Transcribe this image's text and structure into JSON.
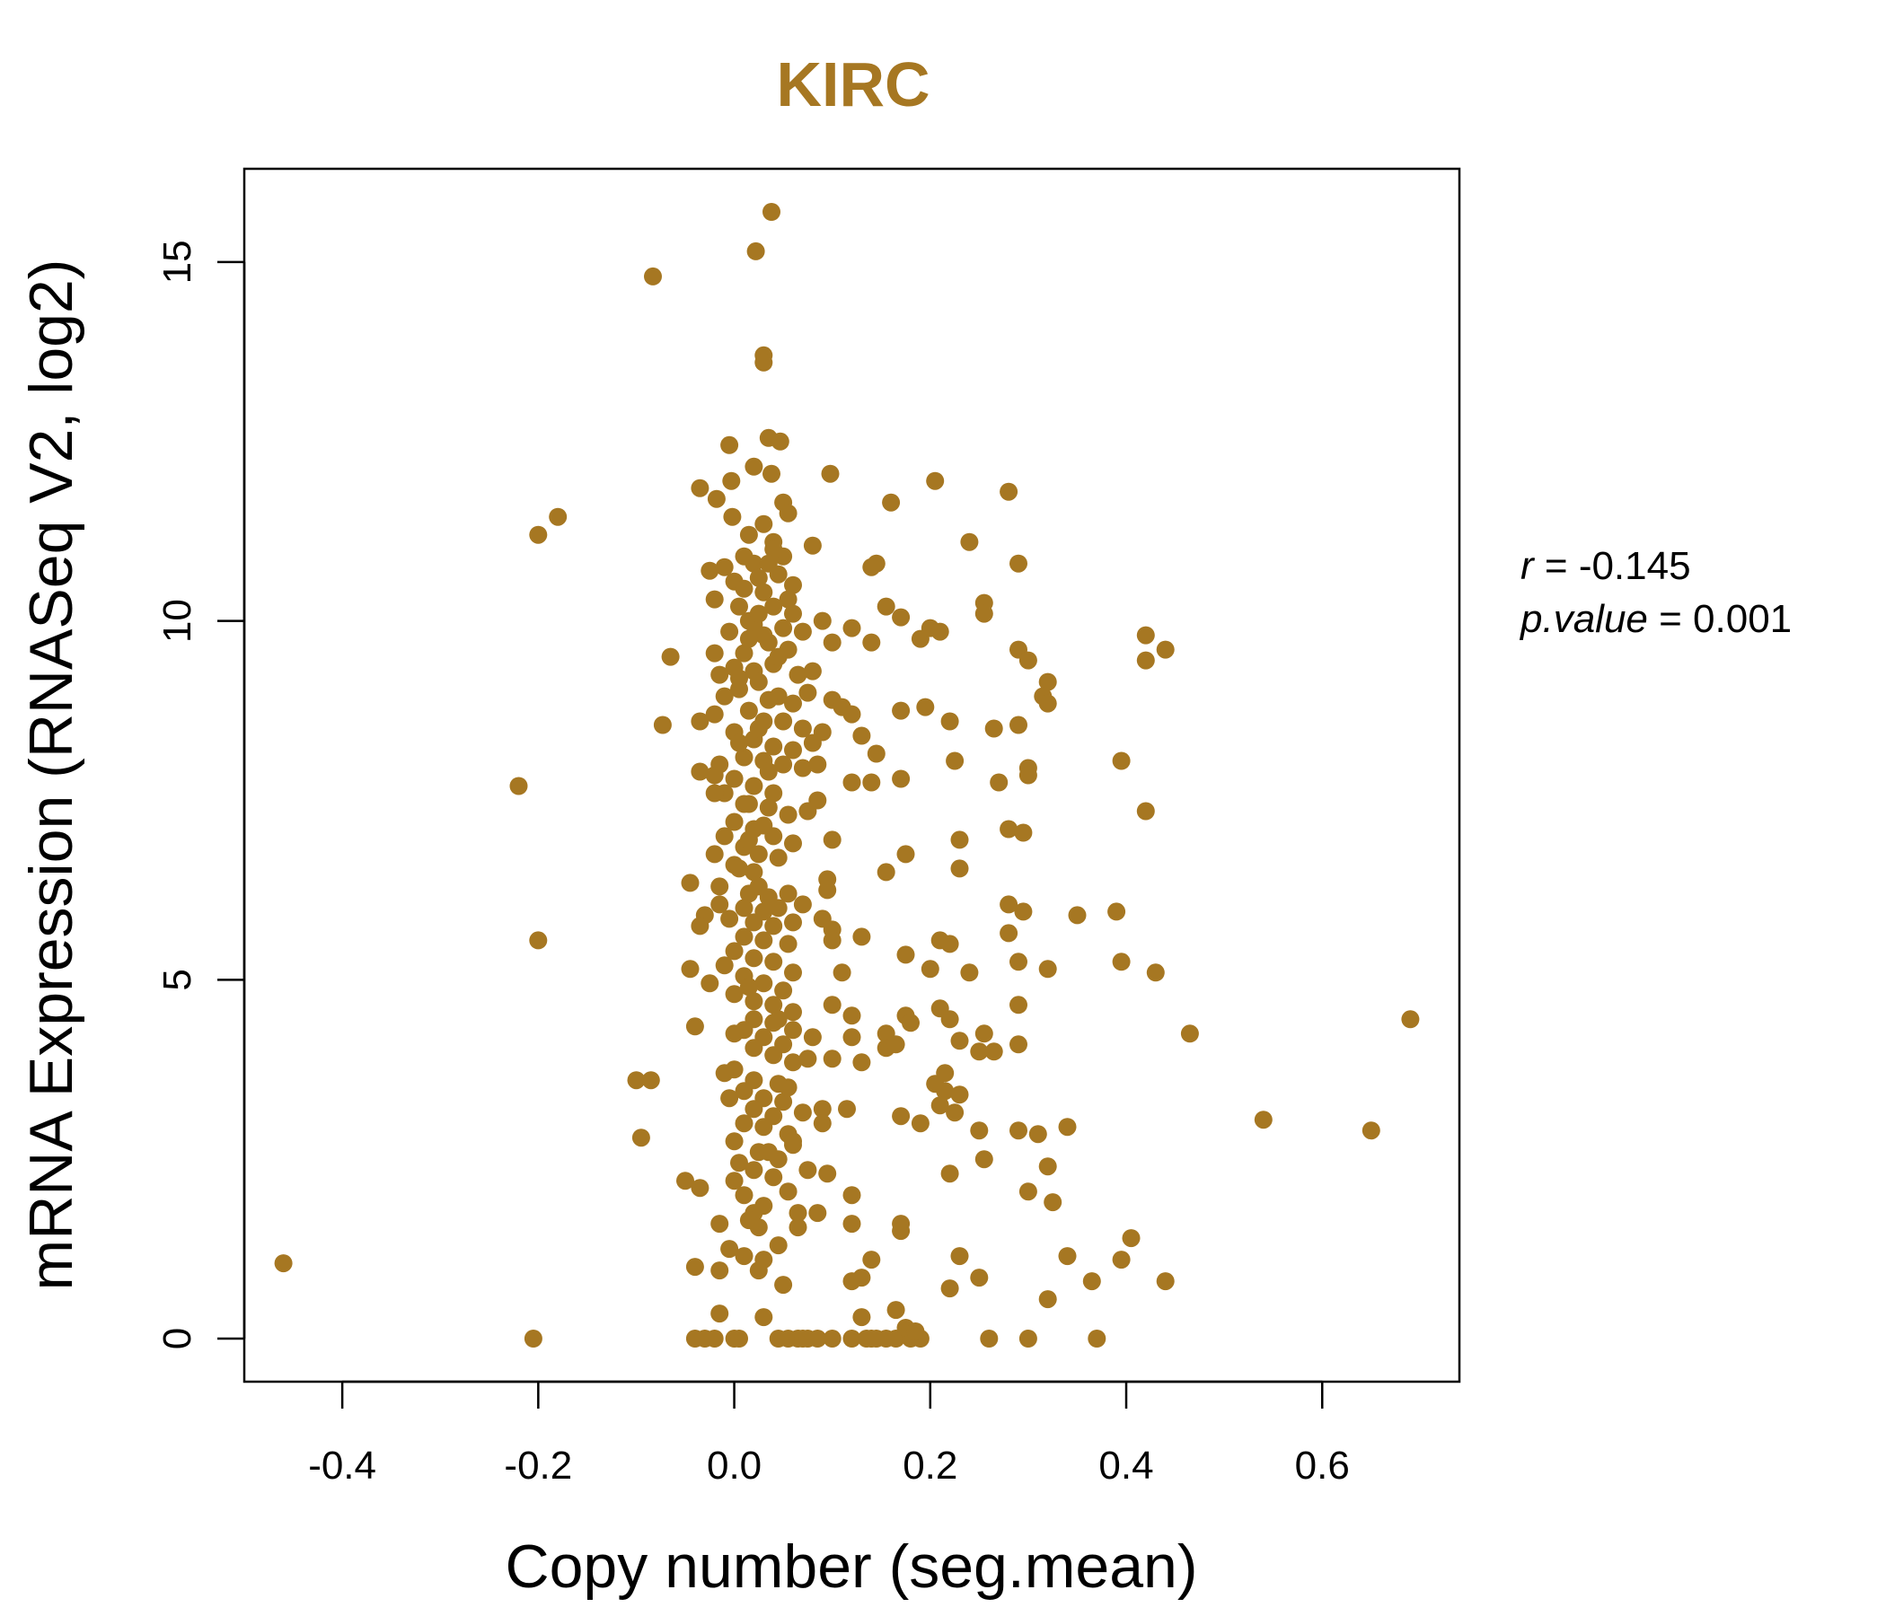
{
  "chart_data": {
    "type": "scatter",
    "title": "KIRC",
    "xlabel": "Copy number (seg.mean)",
    "ylabel": "mRNA Expression (RNASeq V2, log2)",
    "xlim": [
      -0.5,
      0.74
    ],
    "ylim": [
      -0.6,
      16.3
    ],
    "xticks": [
      -0.4,
      -0.2,
      0.0,
      0.2,
      0.4,
      0.6
    ],
    "xtick_labels": [
      "-0.4",
      "-0.2",
      "0.0",
      "0.2",
      "0.4",
      "0.6"
    ],
    "yticks": [
      0,
      5,
      10,
      15
    ],
    "ytick_labels": [
      "0",
      "5",
      "10",
      "15"
    ],
    "grid": false,
    "point_color": "#A67722",
    "title_color": "#A67722",
    "annotation": {
      "r_label": "r",
      "r_value": "-0.145",
      "p_label": "p.value",
      "p_value": "0.001"
    },
    "points": [
      [
        -0.46,
        1.05
      ],
      [
        -0.205,
        0.0
      ],
      [
        -0.2,
        5.55
      ],
      [
        -0.2,
        11.2
      ],
      [
        -0.18,
        11.45
      ],
      [
        -0.22,
        7.7
      ],
      [
        -0.1,
        3.6
      ],
      [
        -0.085,
        3.6
      ],
      [
        -0.095,
        2.8
      ],
      [
        -0.083,
        14.8
      ],
      [
        -0.073,
        8.55
      ],
      [
        -0.065,
        9.5
      ],
      [
        0.038,
        15.7
      ],
      [
        0.022,
        15.15
      ],
      [
        0.03,
        13.7
      ],
      [
        0.03,
        13.6
      ],
      [
        0.035,
        12.55
      ],
      [
        0.047,
        12.5
      ],
      [
        -0.005,
        12.45
      ],
      [
        0.02,
        12.15
      ],
      [
        0.038,
        12.05
      ],
      [
        -0.035,
        11.85
      ],
      [
        -0.018,
        11.7
      ],
      [
        -0.003,
        11.95
      ],
      [
        0.05,
        11.65
      ],
      [
        0.055,
        11.5
      ],
      [
        -0.002,
        11.45
      ],
      [
        0.015,
        11.2
      ],
      [
        0.03,
        11.35
      ],
      [
        0.04,
        11.1
      ],
      [
        0.01,
        10.9
      ],
      [
        0.02,
        10.8
      ],
      [
        0.05,
        10.9
      ],
      [
        0.06,
        10.5
      ],
      [
        0.055,
        10.3
      ],
      [
        -0.025,
        10.7
      ],
      [
        -0.01,
        10.75
      ],
      [
        0.0,
        10.55
      ],
      [
        0.025,
        10.6
      ],
      [
        0.03,
        10.4
      ],
      [
        0.005,
        10.2
      ],
      [
        -0.02,
        10.3
      ],
      [
        0.04,
        10.2
      ],
      [
        0.06,
        10.1
      ],
      [
        0.015,
        10.0
      ],
      [
        0.02,
        9.95
      ],
      [
        -0.005,
        9.85
      ],
      [
        0.03,
        9.8
      ],
      [
        0.05,
        9.9
      ],
      [
        0.07,
        9.85
      ],
      [
        0.055,
        9.6
      ],
      [
        0.01,
        9.55
      ],
      [
        0.035,
        9.7
      ],
      [
        -0.02,
        9.55
      ],
      [
        0.0,
        9.35
      ],
      [
        0.02,
        9.3
      ],
      [
        0.04,
        9.4
      ],
      [
        0.065,
        9.25
      ],
      [
        0.08,
        9.3
      ],
      [
        0.075,
        9.0
      ],
      [
        -0.015,
        9.25
      ],
      [
        0.005,
        9.05
      ],
      [
        0.025,
        9.15
      ],
      [
        0.045,
        8.95
      ],
      [
        0.06,
        8.85
      ],
      [
        -0.01,
        8.95
      ],
      [
        0.015,
        8.75
      ],
      [
        0.03,
        8.6
      ],
      [
        -0.02,
        8.7
      ],
      [
        0.05,
        8.6
      ],
      [
        0.07,
        8.5
      ],
      [
        -0.035,
        8.6
      ],
      [
        0.0,
        8.45
      ],
      [
        0.02,
        8.35
      ],
      [
        0.04,
        8.25
      ],
      [
        0.06,
        8.2
      ],
      [
        0.08,
        8.3
      ],
      [
        0.09,
        8.45
      ],
      [
        0.01,
        8.1
      ],
      [
        0.03,
        8.05
      ],
      [
        -0.015,
        8.0
      ],
      [
        0.05,
        8.0
      ],
      [
        0.07,
        7.95
      ],
      [
        0.085,
        8.0
      ],
      [
        -0.035,
        7.9
      ],
      [
        -0.02,
        7.85
      ],
      [
        0.0,
        7.8
      ],
      [
        0.02,
        7.7
      ],
      [
        0.04,
        7.6
      ],
      [
        -0.01,
        7.6
      ],
      [
        0.015,
        7.45
      ],
      [
        0.035,
        7.4
      ],
      [
        0.055,
        7.3
      ],
      [
        0.075,
        7.35
      ],
      [
        0.085,
        7.5
      ],
      [
        -0.02,
        7.6
      ],
      [
        0.0,
        7.2
      ],
      [
        0.02,
        7.1
      ],
      [
        0.04,
        7.0
      ],
      [
        0.06,
        6.9
      ],
      [
        0.01,
        6.85
      ],
      [
        -0.01,
        7.0
      ],
      [
        0.025,
        6.75
      ],
      [
        0.045,
        6.7
      ],
      [
        -0.02,
        6.75
      ],
      [
        0.0,
        6.6
      ],
      [
        0.02,
        6.5
      ],
      [
        -0.045,
        6.35
      ],
      [
        -0.015,
        6.3
      ],
      [
        0.015,
        6.2
      ],
      [
        0.035,
        6.15
      ],
      [
        0.055,
        6.2
      ],
      [
        0.07,
        6.05
      ],
      [
        0.01,
        6.0
      ],
      [
        0.03,
        5.95
      ],
      [
        -0.03,
        5.9
      ],
      [
        -0.005,
        5.85
      ],
      [
        0.02,
        5.8
      ],
      [
        0.04,
        5.75
      ],
      [
        0.06,
        5.8
      ],
      [
        0.09,
        5.85
      ],
      [
        0.1,
        5.7
      ],
      [
        -0.035,
        5.75
      ],
      [
        0.0,
        5.4
      ],
      [
        0.02,
        5.3
      ],
      [
        0.04,
        5.25
      ],
      [
        0.06,
        5.1
      ],
      [
        -0.045,
        5.15
      ],
      [
        -0.01,
        5.2
      ],
      [
        0.01,
        5.05
      ],
      [
        0.03,
        4.95
      ],
      [
        0.05,
        4.85
      ],
      [
        -0.025,
        4.95
      ],
      [
        0.0,
        4.8
      ],
      [
        0.02,
        4.7
      ],
      [
        0.04,
        4.65
      ],
      [
        0.06,
        4.55
      ],
      [
        0.02,
        4.45
      ],
      [
        0.04,
        4.4
      ],
      [
        0.01,
        4.3
      ],
      [
        0.03,
        4.2
      ],
      [
        0.05,
        4.1
      ],
      [
        -0.04,
        4.35
      ],
      [
        0.0,
        4.25
      ],
      [
        0.02,
        4.05
      ],
      [
        0.04,
        3.95
      ],
      [
        0.06,
        3.85
      ],
      [
        0.0,
        3.75
      ],
      [
        -0.01,
        3.7
      ],
      [
        0.02,
        3.6
      ],
      [
        0.045,
        3.55
      ],
      [
        0.01,
        3.45
      ],
      [
        0.03,
        3.35
      ],
      [
        0.05,
        3.3
      ],
      [
        -0.005,
        3.35
      ],
      [
        0.02,
        3.2
      ],
      [
        0.04,
        3.1
      ],
      [
        0.01,
        3.0
      ],
      [
        0.03,
        2.95
      ],
      [
        0.055,
        2.85
      ],
      [
        0.06,
        2.7
      ],
      [
        0.0,
        2.75
      ],
      [
        0.025,
        2.6
      ],
      [
        0.045,
        2.5
      ],
      [
        0.005,
        2.45
      ],
      [
        0.02,
        2.35
      ],
      [
        0.0,
        2.2
      ],
      [
        0.04,
        2.25
      ],
      [
        -0.05,
        2.2
      ],
      [
        -0.035,
        2.1
      ],
      [
        0.01,
        2.0
      ],
      [
        0.03,
        1.85
      ],
      [
        0.02,
        1.75
      ],
      [
        -0.015,
        1.6
      ],
      [
        0.015,
        1.65
      ],
      [
        0.025,
        1.55
      ],
      [
        0.045,
        1.3
      ],
      [
        -0.005,
        1.25
      ],
      [
        0.01,
        1.15
      ],
      [
        0.03,
        1.1
      ],
      [
        0.025,
        0.95
      ],
      [
        -0.04,
        1.0
      ],
      [
        -0.015,
        0.95
      ],
      [
        0.05,
        0.75
      ],
      [
        -0.015,
        0.35
      ],
      [
        0.03,
        0.3
      ],
      [
        -0.04,
        0.0
      ],
      [
        -0.03,
        0.0
      ],
      [
        -0.02,
        0.0
      ],
      [
        0.0,
        0.0
      ],
      [
        0.005,
        0.0
      ],
      [
        0.045,
        0.0
      ],
      [
        0.055,
        0.0
      ],
      [
        0.065,
        0.0
      ],
      [
        0.07,
        0.0
      ],
      [
        0.075,
        0.0
      ],
      [
        0.085,
        0.0
      ],
      [
        0.1,
        0.0
      ],
      [
        0.12,
        0.0
      ],
      [
        0.14,
        0.0
      ],
      [
        0.155,
        0.0
      ],
      [
        0.165,
        0.0
      ],
      [
        0.18,
        0.0
      ],
      [
        0.19,
        0.0
      ],
      [
        0.135,
        0.0
      ],
      [
        0.145,
        0.0
      ],
      [
        0.26,
        0.0
      ],
      [
        0.3,
        0.0
      ],
      [
        0.37,
        0.0
      ],
      [
        0.098,
        12.05
      ],
      [
        0.08,
        11.05
      ],
      [
        0.16,
        11.65
      ],
      [
        0.205,
        11.95
      ],
      [
        0.28,
        11.8
      ],
      [
        0.24,
        11.1
      ],
      [
        0.145,
        10.8
      ],
      [
        0.14,
        10.75
      ],
      [
        0.29,
        10.8
      ],
      [
        0.255,
        10.25
      ],
      [
        0.255,
        10.1
      ],
      [
        0.155,
        10.2
      ],
      [
        0.17,
        10.05
      ],
      [
        0.09,
        10.0
      ],
      [
        0.12,
        9.9
      ],
      [
        0.1,
        9.7
      ],
      [
        0.14,
        9.7
      ],
      [
        0.19,
        9.75
      ],
      [
        0.2,
        9.9
      ],
      [
        0.21,
        9.85
      ],
      [
        0.29,
        9.6
      ],
      [
        0.3,
        9.45
      ],
      [
        0.32,
        9.15
      ],
      [
        0.315,
        8.95
      ],
      [
        0.32,
        8.85
      ],
      [
        0.42,
        9.8
      ],
      [
        0.44,
        9.6
      ],
      [
        0.42,
        9.45
      ],
      [
        0.1,
        8.9
      ],
      [
        0.11,
        8.8
      ],
      [
        0.12,
        8.7
      ],
      [
        0.17,
        8.75
      ],
      [
        0.195,
        8.8
      ],
      [
        0.22,
        8.6
      ],
      [
        0.265,
        8.5
      ],
      [
        0.29,
        8.55
      ],
      [
        0.13,
        8.4
      ],
      [
        0.145,
        8.15
      ],
      [
        0.225,
        8.05
      ],
      [
        0.3,
        7.95
      ],
      [
        0.3,
        7.85
      ],
      [
        0.395,
        8.05
      ],
      [
        0.12,
        7.75
      ],
      [
        0.14,
        7.75
      ],
      [
        0.17,
        7.8
      ],
      [
        0.27,
        7.75
      ],
      [
        0.28,
        7.1
      ],
      [
        0.295,
        7.05
      ],
      [
        0.42,
        7.35
      ],
      [
        0.1,
        6.95
      ],
      [
        0.175,
        6.75
      ],
      [
        0.23,
        6.95
      ],
      [
        0.23,
        6.55
      ],
      [
        0.155,
        6.5
      ],
      [
        0.095,
        6.4
      ],
      [
        0.095,
        6.25
      ],
      [
        0.28,
        6.05
      ],
      [
        0.295,
        5.95
      ],
      [
        0.35,
        5.9
      ],
      [
        0.39,
        5.95
      ],
      [
        0.1,
        5.55
      ],
      [
        0.13,
        5.6
      ],
      [
        0.21,
        5.55
      ],
      [
        0.22,
        5.5
      ],
      [
        0.28,
        5.65
      ],
      [
        0.175,
        5.35
      ],
      [
        0.11,
        5.1
      ],
      [
        0.2,
        5.15
      ],
      [
        0.24,
        5.1
      ],
      [
        0.29,
        5.25
      ],
      [
        0.32,
        5.15
      ],
      [
        0.395,
        5.25
      ],
      [
        0.43,
        5.1
      ],
      [
        0.1,
        4.65
      ],
      [
        0.12,
        4.5
      ],
      [
        0.175,
        4.5
      ],
      [
        0.21,
        4.6
      ],
      [
        0.22,
        4.45
      ],
      [
        0.29,
        4.65
      ],
      [
        0.08,
        4.2
      ],
      [
        0.12,
        4.2
      ],
      [
        0.155,
        4.25
      ],
      [
        0.155,
        4.05
      ],
      [
        0.165,
        4.1
      ],
      [
        0.18,
        4.4
      ],
      [
        0.23,
        4.15
      ],
      [
        0.25,
        4.0
      ],
      [
        0.255,
        4.25
      ],
      [
        0.265,
        4.0
      ],
      [
        0.29,
        4.1
      ],
      [
        0.465,
        4.25
      ],
      [
        0.69,
        4.45
      ],
      [
        0.1,
        3.9
      ],
      [
        0.13,
        3.85
      ],
      [
        0.215,
        3.7
      ],
      [
        0.205,
        3.55
      ],
      [
        0.215,
        3.45
      ],
      [
        0.23,
        3.4
      ],
      [
        0.09,
        3.2
      ],
      [
        0.115,
        3.2
      ],
      [
        0.17,
        3.1
      ],
      [
        0.21,
        3.25
      ],
      [
        0.225,
        3.15
      ],
      [
        0.09,
        3.0
      ],
      [
        0.19,
        3.0
      ],
      [
        0.25,
        2.9
      ],
      [
        0.29,
        2.9
      ],
      [
        0.31,
        2.85
      ],
      [
        0.34,
        2.95
      ],
      [
        0.54,
        3.05
      ],
      [
        0.65,
        2.9
      ],
      [
        0.075,
        2.35
      ],
      [
        0.095,
        2.3
      ],
      [
        0.22,
        2.3
      ],
      [
        0.255,
        2.5
      ],
      [
        0.32,
        2.4
      ],
      [
        0.3,
        2.05
      ],
      [
        0.12,
        2.0
      ],
      [
        0.325,
        1.9
      ],
      [
        0.085,
        1.75
      ],
      [
        0.12,
        1.6
      ],
      [
        0.17,
        1.6
      ],
      [
        0.17,
        1.5
      ],
      [
        0.065,
        1.55
      ],
      [
        0.23,
        1.15
      ],
      [
        0.34,
        1.15
      ],
      [
        0.395,
        1.1
      ],
      [
        0.405,
        1.4
      ],
      [
        0.14,
        1.1
      ],
      [
        0.13,
        0.85
      ],
      [
        0.12,
        0.8
      ],
      [
        0.25,
        0.85
      ],
      [
        0.365,
        0.8
      ],
      [
        0.44,
        0.8
      ],
      [
        0.22,
        0.7
      ],
      [
        0.32,
        0.55
      ],
      [
        0.13,
        0.3
      ],
      [
        0.165,
        0.4
      ],
      [
        0.175,
        0.15
      ],
      [
        0.185,
        0.1
      ],
      [
        0.04,
        11.0
      ],
      [
        0.035,
        10.8
      ],
      [
        0.045,
        10.65
      ],
      [
        0.01,
        10.45
      ],
      [
        0.025,
        10.1
      ],
      [
        0.015,
        9.75
      ],
      [
        0.045,
        9.5
      ],
      [
        0.005,
        9.2
      ],
      [
        0.035,
        8.9
      ],
      [
        0.025,
        8.5
      ],
      [
        0.005,
        8.3
      ],
      [
        0.035,
        7.9
      ],
      [
        0.01,
        7.45
      ],
      [
        0.03,
        7.15
      ],
      [
        0.015,
        6.95
      ],
      [
        0.005,
        6.55
      ],
      [
        0.025,
        6.3
      ],
      [
        -0.015,
        6.05
      ],
      [
        0.045,
        6.0
      ],
      [
        0.01,
        5.6
      ],
      [
        0.03,
        5.55
      ],
      [
        0.055,
        5.5
      ],
      [
        0.015,
        4.9
      ],
      [
        0.045,
        4.45
      ],
      [
        0.06,
        4.3
      ],
      [
        0.075,
        3.9
      ],
      [
        0.055,
        3.5
      ],
      [
        0.07,
        3.15
      ],
      [
        0.06,
        2.75
      ],
      [
        0.035,
        2.6
      ],
      [
        0.055,
        2.05
      ],
      [
        0.065,
        1.75
      ]
    ]
  }
}
